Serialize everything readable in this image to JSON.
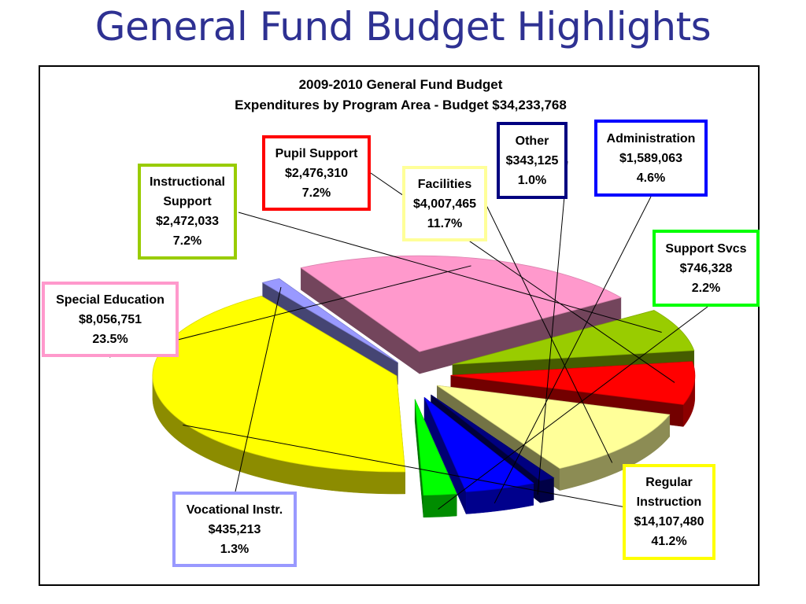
{
  "slide": {
    "title": "General Fund Budget Highlights"
  },
  "chart_data": {
    "type": "pie",
    "title": "2009-2010 General Fund Budget",
    "subtitle": "Expenditures by Program Area - Budget $34,233,768",
    "slices": [
      {
        "name": "Regular Instruction",
        "label_lines": [
          "Regular",
          "Instruction"
        ],
        "amount": "$14,107,480",
        "percent": "41.2%",
        "value": 14107480,
        "color": "#ffff00",
        "border": "#ffff00"
      },
      {
        "name": "Vocational Instr.",
        "label_lines": [
          "Vocational Instr."
        ],
        "amount": "$435,213",
        "percent": "1.3%",
        "value": 435213,
        "color": "#9999ff",
        "border": "#9999ff"
      },
      {
        "name": "Special Education",
        "label_lines": [
          "Special Education"
        ],
        "amount": "$8,056,751",
        "percent": "23.5%",
        "value": 8056751,
        "color": "#ff99cc",
        "border": "#ff99cc"
      },
      {
        "name": "Instructional Support",
        "label_lines": [
          "Instructional",
          "Support"
        ],
        "amount": "$2,472,033",
        "percent": "7.2%",
        "value": 2472033,
        "color": "#99cc00",
        "border": "#99cc00"
      },
      {
        "name": "Pupil Support",
        "label_lines": [
          "Pupil Support"
        ],
        "amount": "$2,476,310",
        "percent": "7.2%",
        "value": 2476310,
        "color": "#ff0000",
        "border": "#ff0000"
      },
      {
        "name": "Facilities",
        "label_lines": [
          "Facilities"
        ],
        "amount": "$4,007,465",
        "percent": "11.7%",
        "value": 4007465,
        "color": "#ffff99",
        "border": "#ffff99"
      },
      {
        "name": "Other",
        "label_lines": [
          "Other"
        ],
        "amount": "$343,125",
        "percent": "1.0%",
        "value": 343125,
        "color": "#000080",
        "border": "#000080"
      },
      {
        "name": "Administration",
        "label_lines": [
          "Administration"
        ],
        "amount": "$1,589,063",
        "percent": "4.6%",
        "value": 1589063,
        "color": "#0000ff",
        "border": "#0000ff"
      },
      {
        "name": "Support Svcs",
        "label_lines": [
          "Support Svcs"
        ],
        "amount": "$746,328",
        "percent": "2.2%",
        "value": 746328,
        "color": "#00ff00",
        "border": "#00ff00"
      }
    ]
  }
}
